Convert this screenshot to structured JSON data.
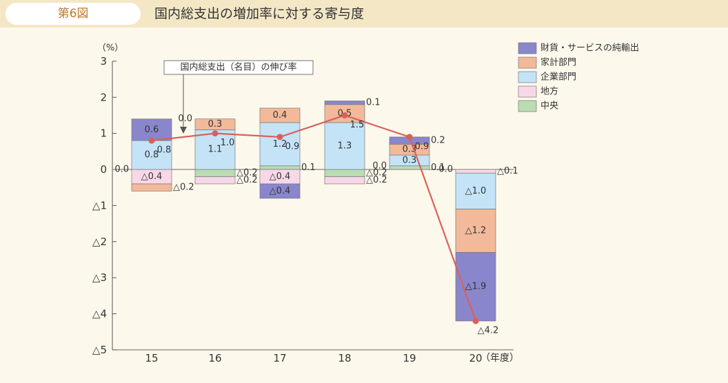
{
  "figure_label": "第6図",
  "title": "国内総支出の増加率に対する寄与度",
  "chart_data": {
    "type": "bar",
    "stacked": true,
    "categories": [
      "15",
      "16",
      "17",
      "18",
      "19",
      "20"
    ],
    "x_unit": "（年度）",
    "y_unit": "（%）",
    "ylim": [
      -5,
      3
    ],
    "y_ticks": [
      3,
      2,
      1,
      0,
      -1,
      -2,
      -3,
      -4,
      -5
    ],
    "y_tick_labels": [
      "3",
      "2",
      "1",
      "0",
      "△1",
      "△2",
      "△3",
      "△4",
      "△5"
    ],
    "grid": false,
    "legend_position": "top-right",
    "series": [
      {
        "name": "財貨・サービスの純輸出",
        "color": "#8a86cc",
        "values": [
          0.6,
          0.0,
          -0.4,
          0.1,
          0.2,
          -1.9
        ],
        "labels": [
          "0.6",
          "0.0",
          "△0.4",
          "0.1",
          "0.2",
          "△1.9"
        ]
      },
      {
        "name": "家計部門",
        "color": "#f2b99a",
        "values": [
          -0.2,
          0.3,
          0.4,
          0.5,
          0.3,
          -1.2
        ],
        "labels": [
          "△0.2",
          "0.3",
          "0.4",
          "0.5",
          "0.3",
          "△1.2"
        ]
      },
      {
        "name": "企業部門",
        "color": "#c4e3f7",
        "values": [
          0.8,
          1.1,
          1.2,
          1.3,
          0.3,
          -1.0
        ],
        "labels": [
          "0.8",
          "1.1",
          "1.2",
          "1.3",
          "0.3",
          "△1.0"
        ]
      },
      {
        "name": "地方",
        "color": "#f8d8e8",
        "values": [
          -0.4,
          -0.2,
          -0.4,
          -0.2,
          0.0,
          -0.1
        ],
        "labels": [
          "△0.4",
          "△0.2",
          "△0.4",
          "△0.2",
          "0.0",
          "△0.1"
        ]
      },
      {
        "name": "中央",
        "color": "#b9dcb2",
        "values": [
          0.0,
          -0.2,
          0.1,
          -0.2,
          0.1,
          0.0
        ],
        "labels": [
          "0.0",
          "△0.2",
          "0.1",
          "△0.2",
          "0.1",
          "0.0"
        ]
      }
    ],
    "line": {
      "name": "国内総支出（名目）の伸び率",
      "color": "#d9605a",
      "values": [
        0.8,
        1.0,
        0.9,
        1.5,
        0.9,
        -4.2
      ],
      "labels": [
        "0.8",
        "1.0",
        "0.9",
        "1.5",
        "0.9",
        "△4.2"
      ]
    }
  }
}
